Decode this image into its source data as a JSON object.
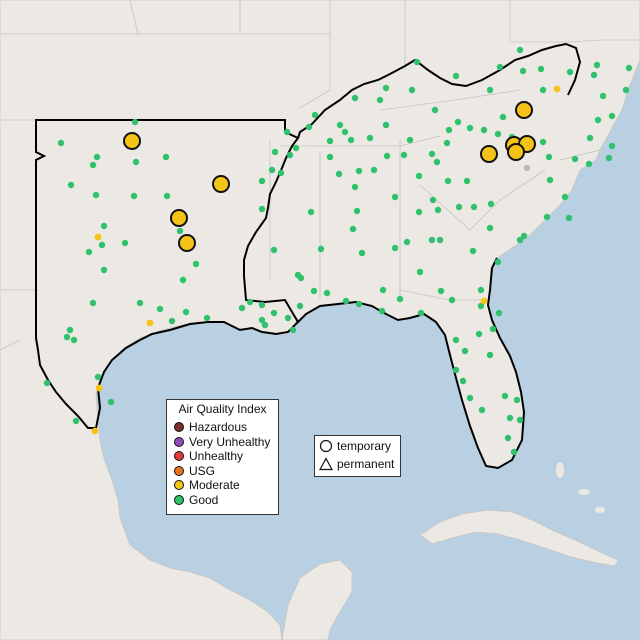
{
  "legend": {
    "title": "Air Quality Index",
    "categories": [
      {
        "label": "Hazardous",
        "color": "#7e2d2d"
      },
      {
        "label": "Very Unhealthy",
        "color": "#8e4fb8"
      },
      {
        "label": "Unhealthy",
        "color": "#e03c31"
      },
      {
        "label": "USG",
        "color": "#e8731b"
      },
      {
        "label": "Moderate",
        "color": "#f5c318"
      },
      {
        "label": "Good",
        "color": "#2fc16b"
      }
    ]
  },
  "shape_legend": {
    "temporary": "temporary",
    "permanent": "permanent"
  },
  "colors": {
    "ocean": "#b9d0e3",
    "land": "#ece8e4",
    "good": "#2fc16b",
    "moderate": "#f5c318",
    "region_outline": "#000000"
  }
}
